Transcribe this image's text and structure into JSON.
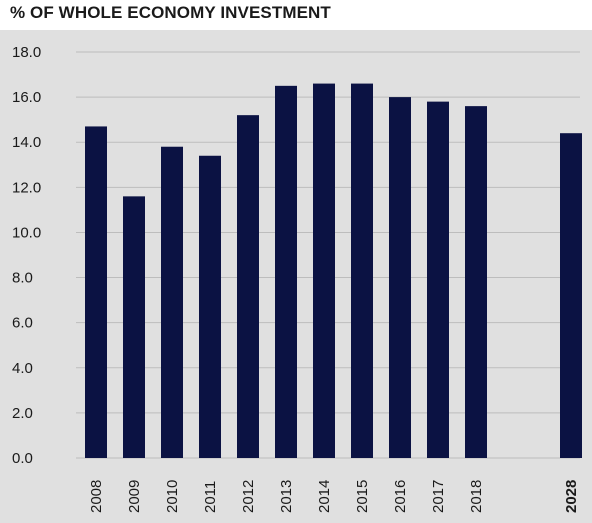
{
  "chart_data": {
    "type": "bar",
    "title": "% OF WHOLE ECONOMY INVESTMENT",
    "categories": [
      "2008",
      "2009",
      "2010",
      "2011",
      "2012",
      "2013",
      "2014",
      "2015",
      "2016",
      "2017",
      "2018",
      "2028"
    ],
    "values": [
      14.7,
      11.6,
      13.8,
      13.4,
      15.2,
      16.5,
      16.6,
      16.6,
      16.0,
      15.8,
      15.6,
      14.4
    ],
    "highlight_categories": [
      "2028"
    ],
    "ylim": [
      0,
      18
    ],
    "yticks": [
      "0.0",
      "2.0",
      "4.0",
      "6.0",
      "8.0",
      "10.0",
      "12.0",
      "14.0",
      "16.0",
      "18.0"
    ],
    "xlabel": "",
    "ylabel": "",
    "grid": true,
    "bar_color": "#0b1243",
    "grid_color": "#bdbdbd",
    "background_color": "#e0e0e0"
  }
}
